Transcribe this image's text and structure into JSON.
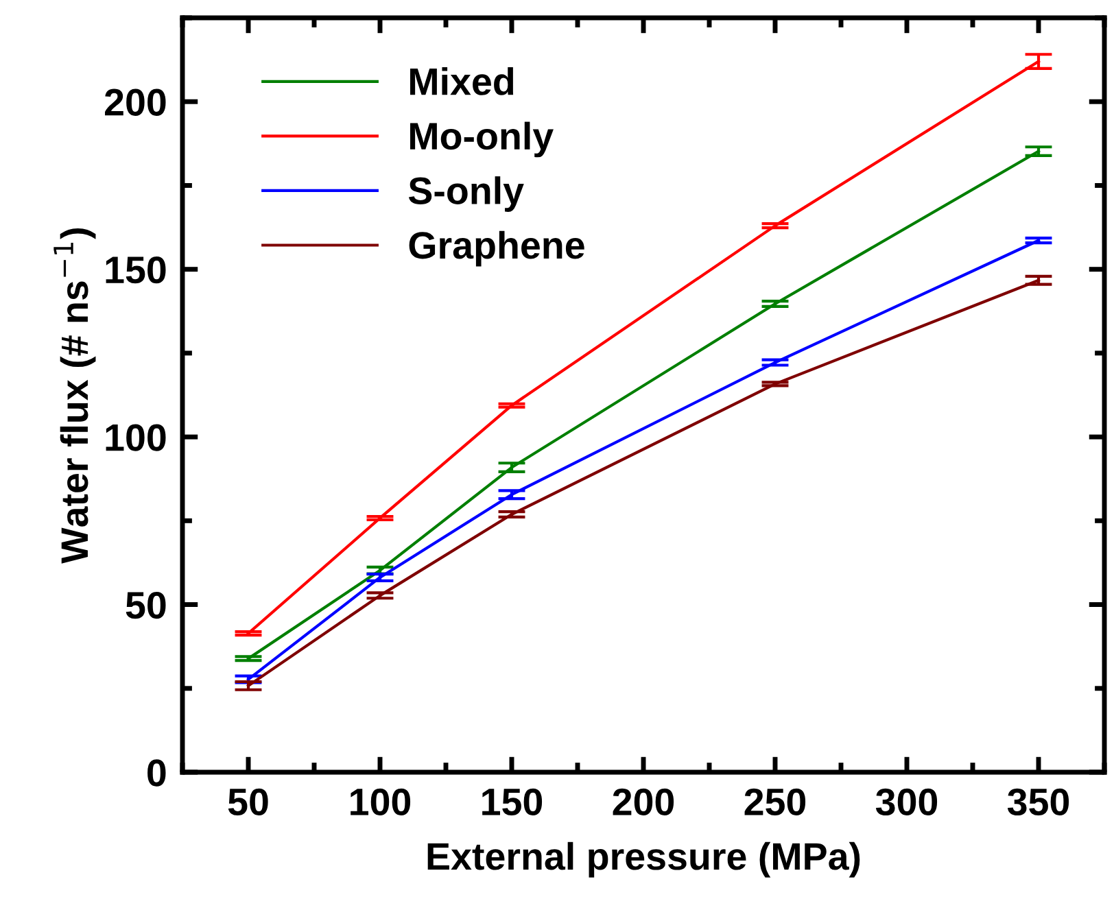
{
  "chart_data": {
    "type": "line",
    "xlabel": "External pressure (MPa)",
    "ylabel": "Water flux (# ns$^{−1}$)",
    "x": [
      50,
      100,
      150,
      250,
      350
    ],
    "xlim": [
      25,
      375
    ],
    "xticks": [
      50,
      100,
      150,
      200,
      250,
      300,
      350
    ],
    "ylim": [
      0,
      225
    ],
    "yticks": [
      0,
      50,
      100,
      150,
      200
    ],
    "legend": "top left",
    "grid": false,
    "marker": "none",
    "line_style": "solid",
    "series": [
      {
        "name": "Mixed",
        "color": "#007f00",
        "values": [
          33.9,
          60.2,
          90.9,
          139.7,
          185.2
        ],
        "errors": [
          0.6,
          1,
          1.3,
          0.8,
          1.3
        ]
      },
      {
        "name": "Mo-only",
        "color": "#ff0000",
        "values": [
          41.4,
          75.8,
          109.4,
          163,
          212
        ],
        "errors": [
          0.5,
          0.5,
          0.5,
          0.6,
          2.1
        ]
      },
      {
        "name": "S-only",
        "color": "#0000ff",
        "values": [
          27.7,
          58.1,
          82.8,
          122.2,
          158.6
        ],
        "errors": [
          1,
          1,
          1.2,
          0.8,
          0.7
        ]
      },
      {
        "name": "Graphene",
        "color": "#7f0000",
        "values": [
          25.8,
          52.7,
          76.9,
          115.8,
          146.7
        ],
        "errors": [
          1.2,
          0.8,
          0.8,
          0.5,
          1.2
        ]
      }
    ]
  }
}
